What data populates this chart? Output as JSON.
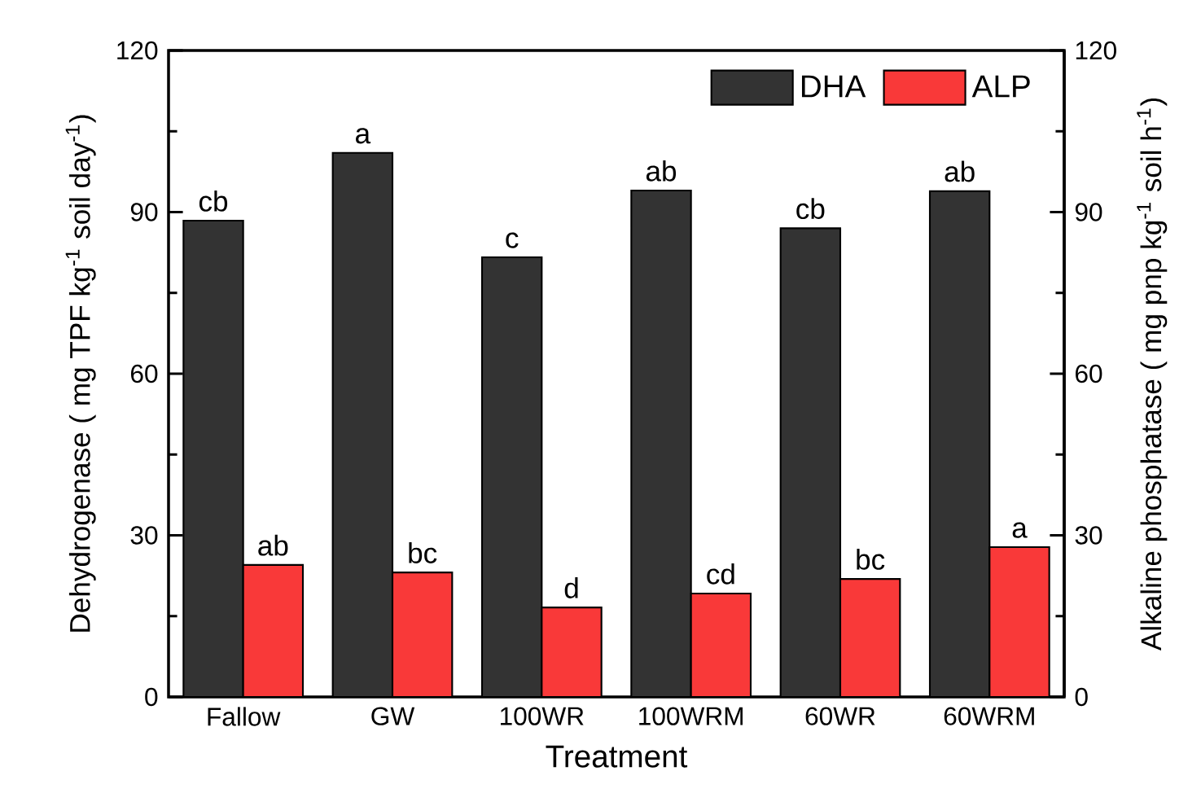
{
  "chart_data": {
    "type": "bar",
    "xlabel": "Treatment",
    "ylabel": "Dehydrogenase ( mg TPF kg$^{-1}$ soil day$^{-1}$)",
    "y2label": "Alkaline phosphatase ( mg pnp kg$^{-1}$ soil h$^{-1}$)",
    "categories": [
      "Fallow",
      "GW",
      "100WR",
      "100WRM",
      "60WR",
      "60WRM"
    ],
    "series": [
      {
        "name": "DHA",
        "color": "#333333",
        "values": [
          88.4,
          101.0,
          81.6,
          94.0,
          87.0,
          93.9
        ]
      },
      {
        "name": "ALP",
        "color": "#f93939",
        "values": [
          24.5,
          23.1,
          16.6,
          19.2,
          21.9,
          27.8
        ],
        "axis": "y2"
      }
    ],
    "ylim": [
      0,
      120
    ],
    "yticks": [
      0,
      30,
      60,
      90,
      120
    ],
    "y2lim": [
      0,
      120
    ],
    "y2ticks": [
      0,
      30,
      60,
      90,
      120
    ],
    "legend": "top right",
    "annotations": [
      {
        "text": "cb",
        "x": "Fallow",
        "y": 88.4
      },
      {
        "text": "a",
        "x": "GW",
        "y": 101.0
      },
      {
        "text": "c",
        "x": "100WR",
        "y": 81.6
      },
      {
        "text": "ab",
        "x": "100WRM",
        "y": 94.0
      },
      {
        "text": "cb",
        "x": "60WR",
        "y": 87.0
      },
      {
        "text": "ab",
        "x": "60WRM",
        "y": 93.9
      },
      {
        "text": "ab",
        "x": "Fallow",
        "y": 24.5
      },
      {
        "text": "bc",
        "x": "GW",
        "y": 23.1
      },
      {
        "text": "d",
        "x": "100WR",
        "y": 16.6
      },
      {
        "text": "cd",
        "x": "100WRM",
        "y": 19.2
      },
      {
        "text": "bc",
        "x": "60WR",
        "y": 21.9
      },
      {
        "text": "a",
        "x": "60WRM",
        "y": 27.8
      }
    ]
  }
}
